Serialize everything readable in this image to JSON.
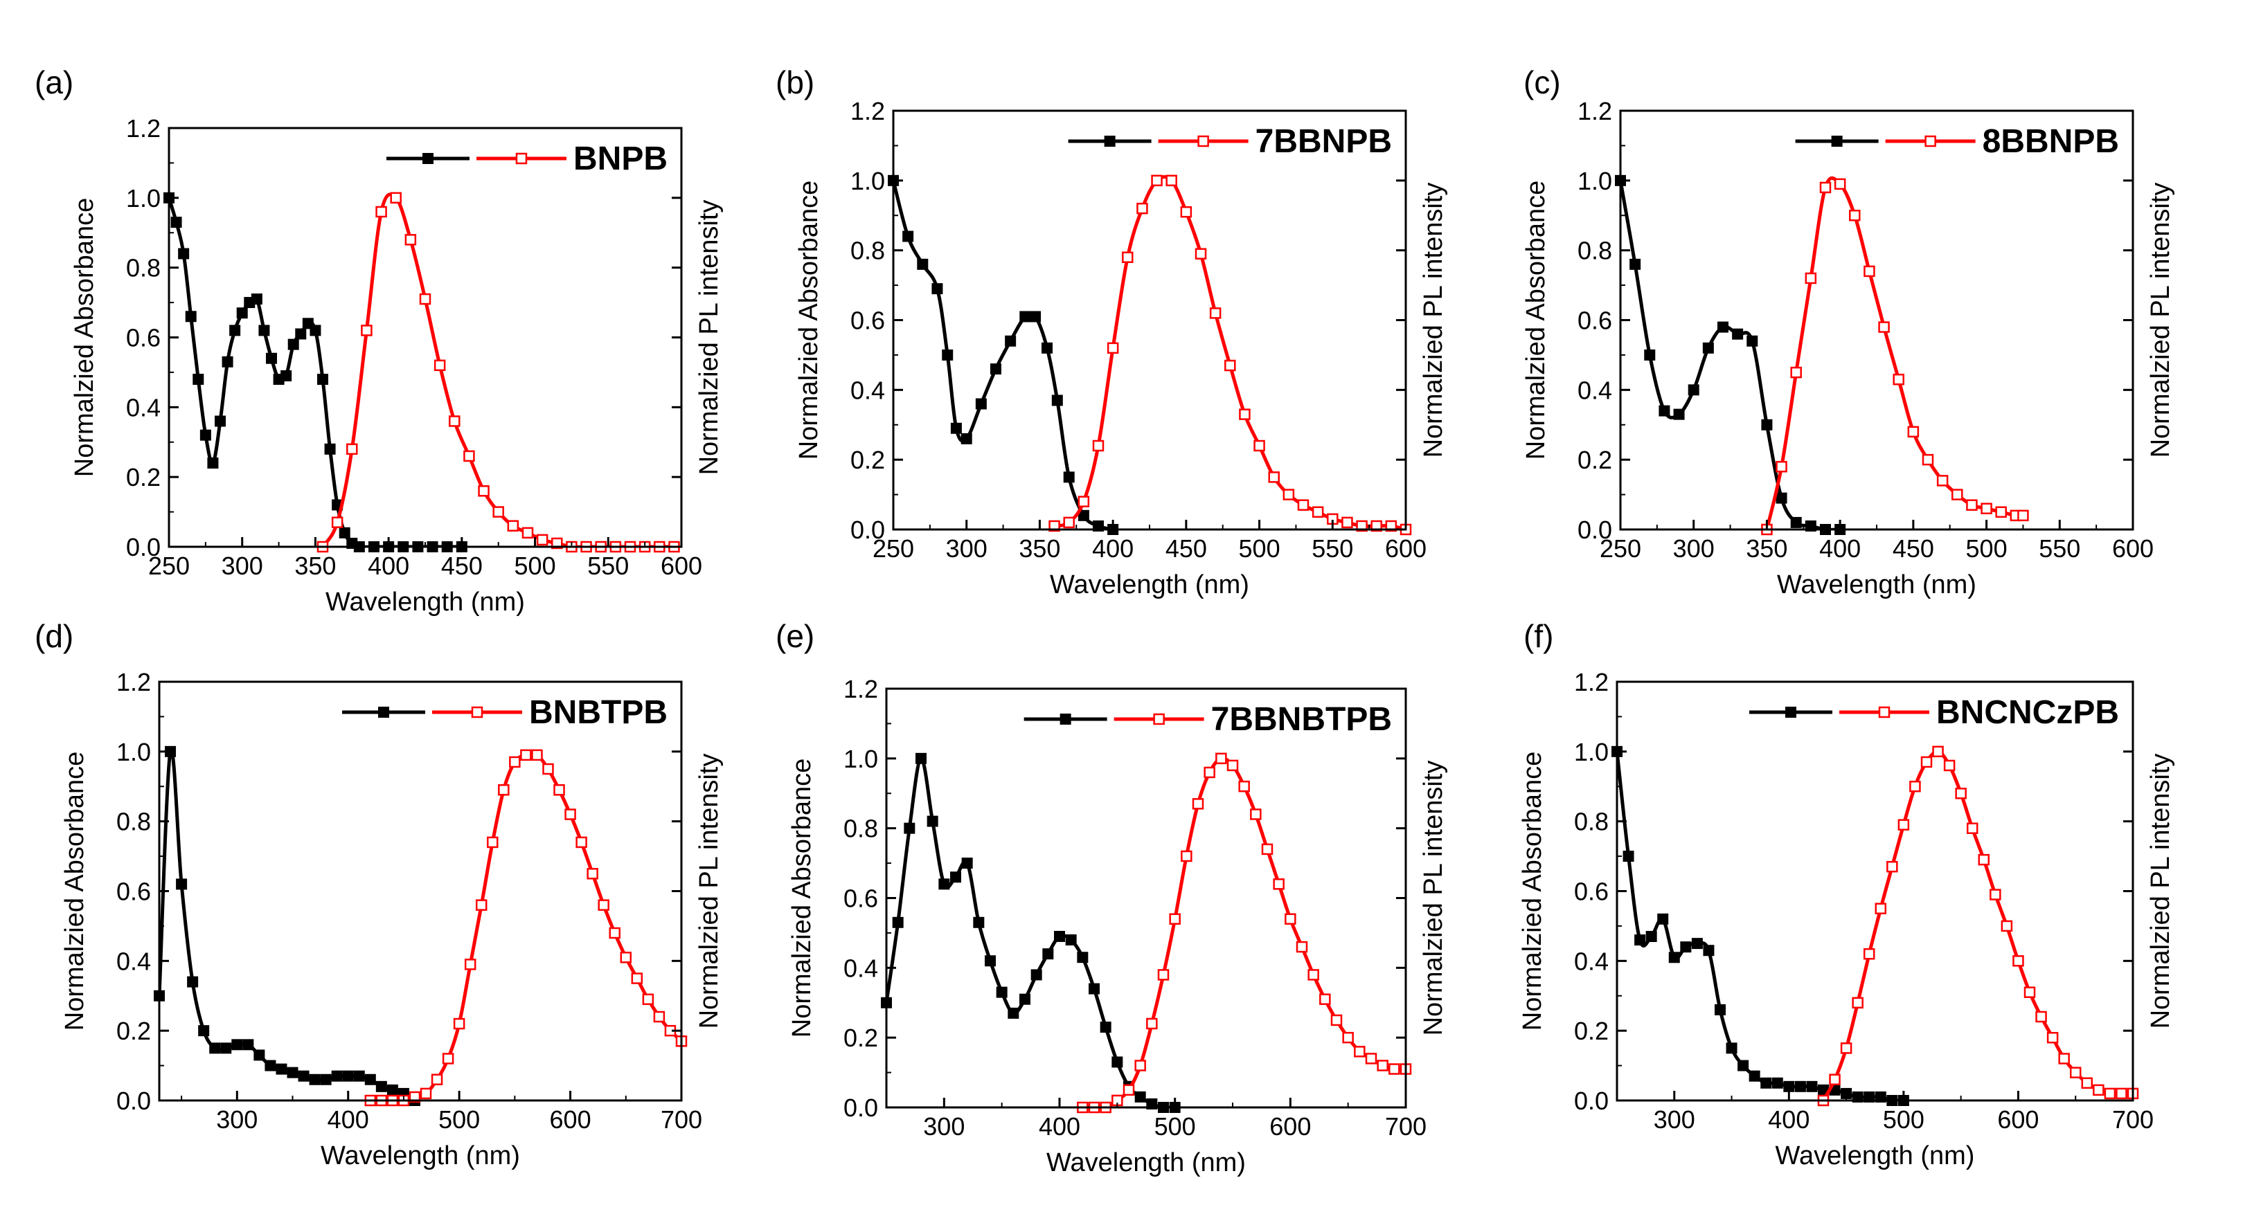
{
  "figure": {
    "abs_ylabel": "Normalzied Absorbance",
    "pl_ylabel": "Normalzied PL intensity",
    "xlabel": "Wavelength (nm)",
    "abs_color": "#000000",
    "pl_color": "#ff0000"
  },
  "chart_data": [
    {
      "panel": "(a)",
      "type": "line",
      "legend": "BNPB",
      "xlabel": "Wavelength (nm)",
      "ylabel": "Normalzied Absorbance",
      "y2label": "Normalzied PL intensity",
      "xlim": [
        250,
        600
      ],
      "ylim": [
        0,
        1.2
      ],
      "xticks": [
        250,
        300,
        350,
        400,
        450,
        500,
        550,
        600
      ],
      "yticks": [
        0.0,
        0.2,
        0.4,
        0.6,
        0.8,
        1.0,
        1.2
      ],
      "series": [
        {
          "type": "absorbance",
          "x": [
            250,
            255,
            260,
            265,
            270,
            275,
            280,
            285,
            290,
            295,
            300,
            305,
            310,
            315,
            320,
            325,
            330,
            335,
            340,
            345,
            350,
            355,
            360,
            365,
            370,
            375,
            380,
            390,
            400,
            410,
            420,
            430,
            440,
            450
          ],
          "y": [
            1.0,
            0.93,
            0.84,
            0.66,
            0.48,
            0.32,
            0.24,
            0.36,
            0.53,
            0.62,
            0.67,
            0.7,
            0.71,
            0.62,
            0.54,
            0.48,
            0.49,
            0.58,
            0.61,
            0.64,
            0.62,
            0.48,
            0.28,
            0.12,
            0.04,
            0.01,
            0.0,
            0.0,
            0.0,
            0.0,
            0.0,
            0.0,
            0.0,
            0.0
          ]
        },
        {
          "type": "pl",
          "x": [
            355,
            365,
            375,
            385,
            395,
            405,
            415,
            425,
            435,
            445,
            455,
            465,
            475,
            485,
            495,
            505,
            515,
            525,
            535,
            545,
            555,
            565,
            575,
            585,
            595
          ],
          "y": [
            0.0,
            0.07,
            0.28,
            0.62,
            0.96,
            1.0,
            0.88,
            0.71,
            0.52,
            0.36,
            0.26,
            0.16,
            0.1,
            0.06,
            0.04,
            0.02,
            0.01,
            0.0,
            0.0,
            0.0,
            0.0,
            0.0,
            0.0,
            0.0,
            0.0
          ]
        }
      ]
    },
    {
      "panel": "(b)",
      "type": "line",
      "legend": "7BBNPB",
      "xlabel": "Wavelength (nm)",
      "ylabel": "Normalzied Absorbance",
      "y2label": "Normalzied PL intensity",
      "xlim": [
        250,
        600
      ],
      "ylim": [
        0,
        1.2
      ],
      "xticks": [
        250,
        300,
        350,
        400,
        450,
        500,
        550,
        600
      ],
      "yticks": [
        0.0,
        0.2,
        0.4,
        0.6,
        0.8,
        1.0,
        1.2
      ],
      "series": [
        {
          "type": "absorbance",
          "x": [
            250,
            260,
            270,
            280,
            287,
            293,
            300,
            310,
            320,
            330,
            340,
            347,
            355,
            362,
            370,
            380,
            390,
            400
          ],
          "y": [
            1.0,
            0.84,
            0.76,
            0.69,
            0.5,
            0.29,
            0.26,
            0.36,
            0.46,
            0.54,
            0.61,
            0.61,
            0.52,
            0.37,
            0.15,
            0.04,
            0.01,
            0.0
          ]
        },
        {
          "type": "pl",
          "x": [
            360,
            370,
            380,
            390,
            400,
            410,
            420,
            430,
            440,
            450,
            460,
            470,
            480,
            490,
            500,
            510,
            520,
            530,
            540,
            550,
            560,
            570,
            580,
            590,
            600
          ],
          "y": [
            0.01,
            0.02,
            0.08,
            0.24,
            0.52,
            0.78,
            0.92,
            1.0,
            1.0,
            0.91,
            0.79,
            0.62,
            0.47,
            0.33,
            0.24,
            0.15,
            0.1,
            0.07,
            0.05,
            0.03,
            0.02,
            0.01,
            0.01,
            0.01,
            0.0
          ]
        }
      ]
    },
    {
      "panel": "(c)",
      "type": "line",
      "legend": "8BBNPB",
      "xlabel": "Wavelength (nm)",
      "ylabel": "Normalzied Absorbance",
      "y2label": "Normalzied PL intensity",
      "xlim": [
        250,
        600
      ],
      "ylim": [
        0,
        1.2
      ],
      "xticks": [
        250,
        300,
        350,
        400,
        450,
        500,
        550,
        600
      ],
      "yticks": [
        0.0,
        0.2,
        0.4,
        0.6,
        0.8,
        1.0,
        1.2
      ],
      "series": [
        {
          "type": "absorbance",
          "x": [
            250,
            260,
            270,
            280,
            290,
            300,
            310,
            320,
            330,
            340,
            350,
            360,
            370,
            380,
            390,
            400
          ],
          "y": [
            1.0,
            0.76,
            0.5,
            0.34,
            0.33,
            0.4,
            0.52,
            0.58,
            0.56,
            0.54,
            0.3,
            0.09,
            0.02,
            0.01,
            0.0,
            0.0
          ]
        },
        {
          "type": "pl",
          "x": [
            350,
            360,
            370,
            380,
            390,
            400,
            410,
            420,
            430,
            440,
            450,
            460,
            470,
            480,
            490,
            500,
            510,
            520,
            525
          ],
          "y": [
            0.0,
            0.18,
            0.45,
            0.72,
            0.98,
            0.99,
            0.9,
            0.74,
            0.58,
            0.43,
            0.28,
            0.2,
            0.14,
            0.1,
            0.07,
            0.06,
            0.05,
            0.04,
            0.04
          ]
        }
      ]
    },
    {
      "panel": "(d)",
      "type": "line",
      "legend": "BNBTPB",
      "xlabel": "Wavelength (nm)",
      "ylabel": "Normalzied Absorbance",
      "y2label": "Normalzied PL intensity",
      "xlim": [
        230,
        700
      ],
      "ylim": [
        0,
        1.2
      ],
      "xticks": [
        300,
        400,
        500,
        600,
        700
      ],
      "yticks": [
        0.0,
        0.2,
        0.4,
        0.6,
        0.8,
        1.0,
        1.2
      ],
      "series": [
        {
          "type": "absorbance",
          "x": [
            230,
            240,
            250,
            260,
            270,
            280,
            290,
            300,
            310,
            320,
            330,
            340,
            350,
            360,
            370,
            380,
            390,
            400,
            410,
            420,
            430,
            440,
            450,
            460
          ],
          "y": [
            0.3,
            1.0,
            0.62,
            0.34,
            0.2,
            0.15,
            0.15,
            0.16,
            0.16,
            0.13,
            0.1,
            0.09,
            0.08,
            0.07,
            0.06,
            0.06,
            0.07,
            0.07,
            0.07,
            0.06,
            0.04,
            0.03,
            0.02,
            0.0
          ]
        },
        {
          "type": "pl",
          "x": [
            420,
            430,
            440,
            450,
            460,
            470,
            480,
            490,
            500,
            510,
            520,
            530,
            540,
            550,
            560,
            570,
            580,
            590,
            600,
            610,
            620,
            630,
            640,
            650,
            660,
            670,
            680,
            690,
            700
          ],
          "y": [
            0.0,
            0.0,
            0.0,
            0.0,
            0.01,
            0.02,
            0.06,
            0.12,
            0.22,
            0.39,
            0.56,
            0.74,
            0.89,
            0.97,
            0.99,
            0.99,
            0.95,
            0.89,
            0.82,
            0.74,
            0.65,
            0.56,
            0.48,
            0.41,
            0.35,
            0.29,
            0.24,
            0.2,
            0.17
          ]
        }
      ]
    },
    {
      "panel": "(e)",
      "type": "line",
      "legend": "7BBNBTPB",
      "xlabel": "Wavelength (nm)",
      "ylabel": "Normalzied Absorbance",
      "y2label": "Normalzied PL intensity",
      "xlim": [
        250,
        700
      ],
      "ylim": [
        0,
        1.2
      ],
      "xticks": [
        300,
        400,
        500,
        600,
        700
      ],
      "yticks": [
        0.0,
        0.2,
        0.4,
        0.6,
        0.8,
        1.0,
        1.2
      ],
      "series": [
        {
          "type": "absorbance",
          "x": [
            250,
            260,
            270,
            280,
            290,
            300,
            310,
            320,
            330,
            340,
            350,
            360,
            370,
            380,
            390,
            400,
            410,
            420,
            430,
            440,
            450,
            460,
            470,
            480,
            490,
            500
          ],
          "y": [
            0.3,
            0.53,
            0.8,
            1.0,
            0.82,
            0.64,
            0.66,
            0.7,
            0.53,
            0.42,
            0.33,
            0.27,
            0.31,
            0.38,
            0.44,
            0.49,
            0.48,
            0.43,
            0.34,
            0.23,
            0.13,
            0.06,
            0.03,
            0.01,
            0.0,
            0.0
          ]
        },
        {
          "type": "pl",
          "x": [
            420,
            430,
            440,
            450,
            460,
            470,
            480,
            490,
            500,
            510,
            520,
            530,
            540,
            550,
            560,
            570,
            580,
            590,
            600,
            610,
            620,
            630,
            640,
            650,
            660,
            670,
            680,
            690,
            700
          ],
          "y": [
            0.0,
            0.0,
            0.0,
            0.02,
            0.05,
            0.12,
            0.24,
            0.38,
            0.54,
            0.72,
            0.87,
            0.96,
            1.0,
            0.98,
            0.92,
            0.84,
            0.74,
            0.64,
            0.54,
            0.46,
            0.38,
            0.31,
            0.25,
            0.2,
            0.16,
            0.14,
            0.12,
            0.11,
            0.11
          ]
        }
      ]
    },
    {
      "panel": "(f)",
      "type": "line",
      "legend": "BNCNCzPB",
      "xlabel": "Wavelength (nm)",
      "ylabel": "Normalzied Absorbance",
      "y2label": "Normalzied PL intensity",
      "xlim": [
        250,
        700
      ],
      "ylim": [
        0,
        1.2
      ],
      "xticks": [
        300,
        400,
        500,
        600,
        700
      ],
      "yticks": [
        0.0,
        0.2,
        0.4,
        0.6,
        0.8,
        1.0,
        1.2
      ],
      "series": [
        {
          "type": "absorbance",
          "x": [
            250,
            260,
            270,
            280,
            290,
            300,
            310,
            320,
            330,
            340,
            350,
            360,
            370,
            380,
            390,
            400,
            410,
            420,
            430,
            440,
            450,
            460,
            470,
            480,
            490,
            500
          ],
          "y": [
            1.0,
            0.7,
            0.46,
            0.47,
            0.52,
            0.41,
            0.44,
            0.45,
            0.43,
            0.26,
            0.15,
            0.1,
            0.07,
            0.05,
            0.05,
            0.04,
            0.04,
            0.04,
            0.03,
            0.03,
            0.02,
            0.01,
            0.01,
            0.01,
            0.0,
            0.0
          ]
        },
        {
          "type": "pl",
          "x": [
            430,
            440,
            450,
            460,
            470,
            480,
            490,
            500,
            510,
            520,
            530,
            540,
            550,
            560,
            570,
            580,
            590,
            600,
            610,
            620,
            630,
            640,
            650,
            660,
            670,
            680,
            690,
            700
          ],
          "y": [
            0.0,
            0.06,
            0.15,
            0.28,
            0.42,
            0.55,
            0.67,
            0.79,
            0.9,
            0.97,
            1.0,
            0.96,
            0.88,
            0.78,
            0.69,
            0.59,
            0.5,
            0.4,
            0.31,
            0.24,
            0.18,
            0.12,
            0.08,
            0.05,
            0.03,
            0.02,
            0.02,
            0.02
          ]
        }
      ]
    }
  ]
}
